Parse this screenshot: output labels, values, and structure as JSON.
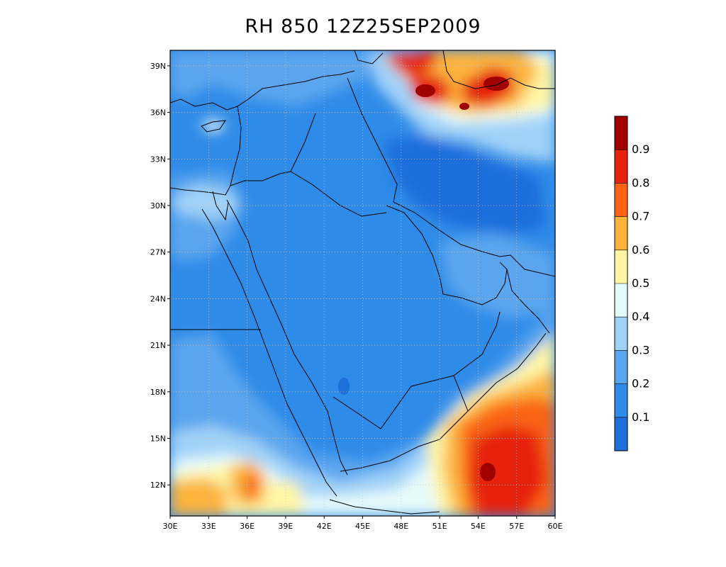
{
  "title": "RH 850 12Z25SEP2009",
  "map": {
    "type": "filled-contour",
    "variable": "RH",
    "level": "850",
    "lon_range": [
      30,
      60
    ],
    "lat_range": [
      10,
      40
    ],
    "lon_ticks": [
      "30E",
      "33E",
      "36E",
      "39E",
      "42E",
      "45E",
      "48E",
      "51E",
      "54E",
      "57E",
      "60E"
    ],
    "lat_ticks": [
      "12N",
      "15N",
      "18N",
      "21N",
      "24N",
      "27N",
      "30N",
      "33N",
      "36N",
      "39N"
    ],
    "grid": true,
    "grid_style": "dotted"
  },
  "colorbar": {
    "placement": "right",
    "labels": [
      "0.1",
      "0.2",
      "0.3",
      "0.4",
      "0.5",
      "0.6",
      "0.7",
      "0.8",
      "0.9"
    ],
    "colors": [
      "#1e6edc",
      "#2f8be8",
      "#5aa5ee",
      "#a0d2f8",
      "#e6fafa",
      "#fff5a5",
      "#fcb43c",
      "#fa6414",
      "#e6230f",
      "#a00000"
    ]
  }
}
